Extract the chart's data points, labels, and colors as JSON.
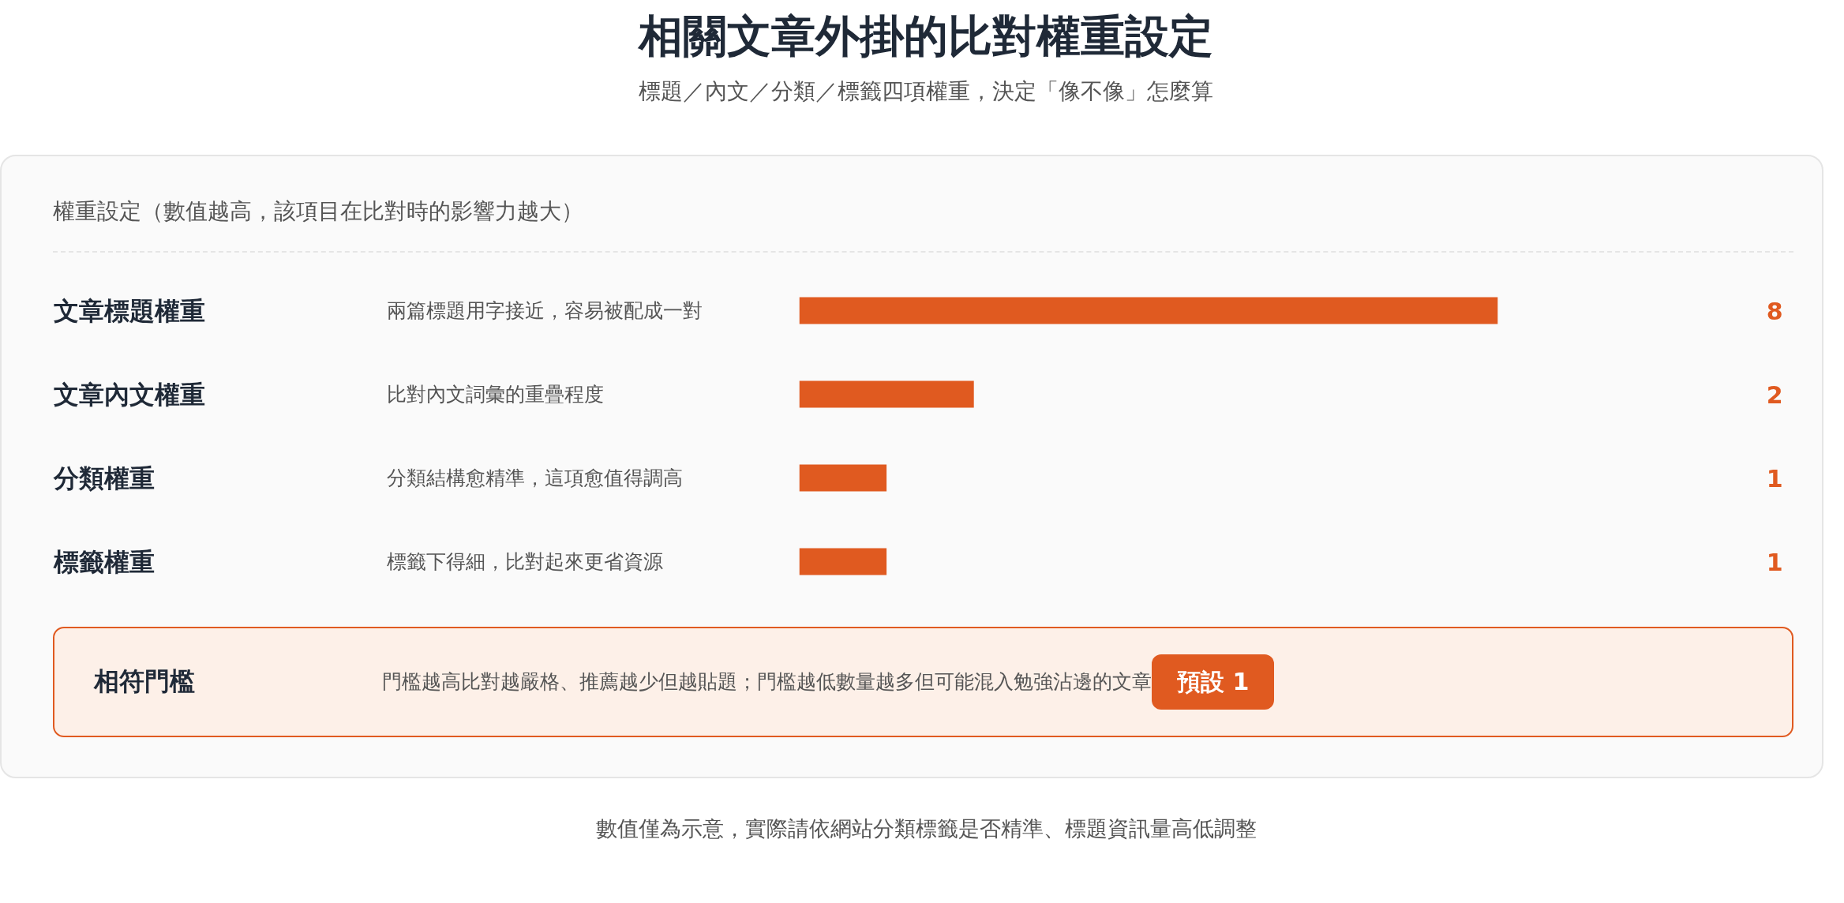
{
  "chart_data": {
    "type": "bar",
    "orientation": "horizontal",
    "title": "相關文章外掛的比對權重設定",
    "subtitle": "標題／內文／分類／標籤四項權重，決定「像不像」怎麼算",
    "categories": [
      "文章標題權重",
      "文章內文權重",
      "分類權重",
      "標籤權重"
    ],
    "values": [
      8,
      2,
      1,
      1
    ],
    "color": "#e05a20",
    "xlim": [
      0,
      10
    ],
    "tick_labels": "y",
    "data_labels": true,
    "annotations": [
      "權重設定（數值越高，該項目在比對時的影響力越大）",
      "兩篇標題用字接近，容易被配成一對",
      "比對內文詞彙的重疊程度",
      "分類結構愈精準，這項愈值得調高",
      "標籤下得細，比對起來更省資源",
      "相符門檻",
      "門檻越高比對越嚴格、推薦越少但越貼題；門檻越低數量越多但可能混入勉強沾邊的文章",
      "預設 1",
      "數值僅為示意，實際請依網站分類標籤是否精準、標題資訊量高低調整"
    ]
  }
}
